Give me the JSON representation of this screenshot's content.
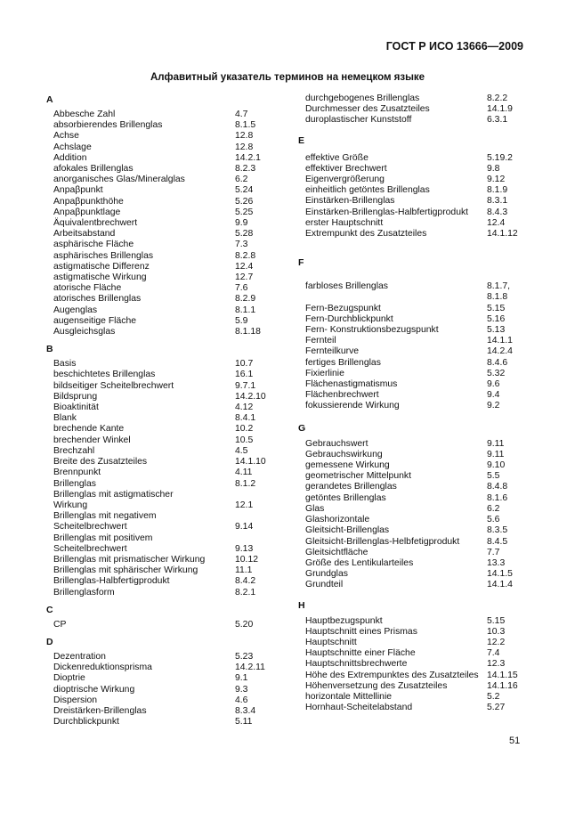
{
  "header": "ГОСТ Р ИСО 13666—2009",
  "title": "Алфавитный указатель терминов на немецком языке",
  "page_number": "51",
  "left_column": [
    {
      "letter": "A",
      "entries": [
        {
          "term": "Abbesche Zahl",
          "ref": "4.7"
        },
        {
          "term": "absorbierendes Brillenglas",
          "ref": "8.1.5"
        },
        {
          "term": "Achse",
          "ref": "12.8"
        },
        {
          "term": "Achslage",
          "ref": "12.8"
        },
        {
          "term": "Addition",
          "ref": "14.2.1"
        },
        {
          "term": "afokales Brillenglas",
          "ref": "8.2.3"
        },
        {
          "term": "anorganisches Glas/Mineralglas",
          "ref": "6.2"
        },
        {
          "term": "Anpaβpunkt",
          "ref": "5.24"
        },
        {
          "term": "Anpaβpunkthöhe",
          "ref": "5.26"
        },
        {
          "term": "Anpaβpunktlage",
          "ref": "5.25"
        },
        {
          "term": "Äquivalentbrechwert",
          "ref": "9.9"
        },
        {
          "term": "Arbeitsabstand",
          "ref": "5.28"
        },
        {
          "term": "asphärische Fläche",
          "ref": "7.3"
        },
        {
          "term": "asphärisches Brillenglas",
          "ref": "8.2.8"
        },
        {
          "term": "astigmatische Differenz",
          "ref": "12.4"
        },
        {
          "term": "astigmatische Wirkung",
          "ref": "12.7"
        },
        {
          "term": "atorische Fläche",
          "ref": "7.6"
        },
        {
          "term": "atorisches Brillenglas",
          "ref": "8.2.9"
        },
        {
          "term": "Augenglas",
          "ref": "8.1.1"
        },
        {
          "term": "augenseitige Fläche",
          "ref": "5.9"
        },
        {
          "term": "Ausgleichsglas",
          "ref": "8.1.18"
        }
      ]
    },
    {
      "letter": "B",
      "entries": [
        {
          "term": "Basis",
          "ref": "10.7"
        },
        {
          "term": "beschichtetes Brillenglas",
          "ref": "16.1"
        },
        {
          "term": "bildseitiger Scheitelbrechwert",
          "ref": "9.7.1"
        },
        {
          "term": "Bildsprung",
          "ref": "14.2.10"
        },
        {
          "term": "Bioaktinität",
          "ref": "4.12"
        },
        {
          "term": "Blank",
          "ref": "8.4.1"
        },
        {
          "term": "brechende Kante",
          "ref": "10.2"
        },
        {
          "term": "brechender Winkel",
          "ref": "10.5"
        },
        {
          "term": "Brechzahl",
          "ref": "4.5"
        },
        {
          "term": "Breite des Zusatzteiles",
          "ref": "14.1.10"
        },
        {
          "term": "Brennpunkt",
          "ref": "4.11"
        },
        {
          "term": "Brillenglas",
          "ref": "8.1.2"
        },
        {
          "term": "Brillenglas mit astigmatischer\nWirkung",
          "ref": "\n12.1"
        },
        {
          "term": "Brillenglas mit negativem\nScheitelbrechwert",
          "ref": "\n9.14"
        },
        {
          "term": "Brillenglas mit positivem\nScheitelbrechwert",
          "ref": "\n9.13"
        },
        {
          "term": "Brillenglas mit prismatischer Wirkung",
          "ref": "10.12"
        },
        {
          "term": "Brillenglas mit sphärischer Wirkung",
          "ref": "11.1"
        },
        {
          "term": "Brillenglas-Halbfertigprodukt",
          "ref": "8.4.2"
        },
        {
          "term": "Brillenglasform",
          "ref": "8.2.1"
        }
      ]
    },
    {
      "letter": "C",
      "entries": [
        {
          "term": "CP",
          "ref": "5.20"
        }
      ]
    },
    {
      "letter": "D",
      "entries": [
        {
          "term": "Dezentration",
          "ref": "5.23"
        },
        {
          "term": "Dickenreduktionsprisma",
          "ref": "14.2.11"
        },
        {
          "term": "Dioptrie",
          "ref": "9.1"
        },
        {
          "term": "dioptrische Wirkung",
          "ref": "9.3"
        },
        {
          "term": "Dispersion",
          "ref": "4.6"
        },
        {
          "term": "Dreistärken-Brillenglas",
          "ref": "8.3.4"
        },
        {
          "term": "Durchblickpunkt",
          "ref": "5.11"
        }
      ]
    }
  ],
  "right_column": [
    {
      "letter": "",
      "entries": [
        {
          "term": "durchgebogenes Brillenglas",
          "ref": "8.2.2"
        },
        {
          "term": "Durchmesser des Zusatzteiles",
          "ref": "14.1.9"
        },
        {
          "term": "duroplastischer Kunststoff",
          "ref": "6.3.1"
        }
      ]
    },
    {
      "letter": "E",
      "entries": [
        {
          "term": "effektive Größe",
          "ref": "5.19.2"
        },
        {
          "term": "effektiver Brechwert",
          "ref": "9.8"
        },
        {
          "term": "Eigenvergrößerung",
          "ref": "9.12"
        },
        {
          "term": "einheitlich getöntes Brillenglas",
          "ref": "8.1.9"
        },
        {
          "term": "Einstärken-Brillenglas",
          "ref": "8.3.1"
        },
        {
          "term": "Einstärken-Brillenglas-Halbfertigprodukt",
          "ref": "8.4.3"
        },
        {
          "term": "erster Hauptschnitt",
          "ref": "12.4"
        },
        {
          "term": "Extrempunkt des Zusatzteiles",
          "ref": "14.1.12"
        }
      ]
    },
    {
      "letter": "F",
      "entries": [
        {
          "term": "farbloses Brillenglas",
          "ref": "8.1.7,\n8.1.8"
        },
        {
          "term": "Fern-Bezugspunkt",
          "ref": "5.15"
        },
        {
          "term": "Fern-Durchblickpunkt",
          "ref": "5.16"
        },
        {
          "term": "Fern- Konstruktionsbezugspunkt",
          "ref": "5.13"
        },
        {
          "term": "Fernteil",
          "ref": "14.1.1"
        },
        {
          "term": "Fernteilkurve",
          "ref": "14.2.4"
        },
        {
          "term": "fertiges Brillenglas",
          "ref": "8.4.6"
        },
        {
          "term": "Fixierlinie",
          "ref": "5.32"
        },
        {
          "term": "Flächenastigmatismus",
          "ref": "9.6"
        },
        {
          "term": "Flächenbrechwert",
          "ref": "9.4"
        },
        {
          "term": "fokussierende Wirkung",
          "ref": "9.2"
        }
      ]
    },
    {
      "letter": "G",
      "entries": [
        {
          "term": "Gebrauchswert",
          "ref": "9.11"
        },
        {
          "term": "Gebrauchswirkung",
          "ref": "9.11"
        },
        {
          "term": "gemessene Wirkung",
          "ref": "9.10"
        },
        {
          "term": "geometrischer Mittelpunkt",
          "ref": "5.5"
        },
        {
          "term": "gerandetes Brillenglas",
          "ref": "8.4.8"
        },
        {
          "term": "getöntes Brillenglas",
          "ref": "8.1.6"
        },
        {
          "term": "Glas",
          "ref": "6.2"
        },
        {
          "term": "Glashorizontale",
          "ref": "5.6"
        },
        {
          "term": "Gleitsicht-Brillenglas",
          "ref": "8.3.5"
        },
        {
          "term": "Gleitsicht-Brillenglas-Helbfetigprodukt",
          "ref": "8.4.5"
        },
        {
          "term": "Gleitsichtfläche",
          "ref": "7.7"
        },
        {
          "term": "Größe des Lentikularteiles",
          "ref": "13.3"
        },
        {
          "term": "Grundglas",
          "ref": "14.1.5"
        },
        {
          "term": "Grundteil",
          "ref": "14.1.4"
        }
      ]
    },
    {
      "letter": "H",
      "entries": [
        {
          "term": "Hauptbezugspunkt",
          "ref": "5.15"
        },
        {
          "term": "Hauptschnitt eines Prismas",
          "ref": "10.3"
        },
        {
          "term": "Hauptschnitt",
          "ref": "12.2"
        },
        {
          "term": "Hauptschnitte einer Fläche",
          "ref": "7.4"
        },
        {
          "term": "Hauptschnittsbrechwerte",
          "ref": "12.3"
        },
        {
          "term": "Höhe des Extrempunktes des Zusatzteiles",
          "ref": "14.1.15"
        },
        {
          "term": "Höhenversetzung des Zusatzteiles",
          "ref": "14.1.16"
        },
        {
          "term": "horizontale Mittellinie",
          "ref": "5.2"
        },
        {
          "term": "Hornhaut-Scheitelabstand",
          "ref": "5.27"
        }
      ]
    }
  ]
}
